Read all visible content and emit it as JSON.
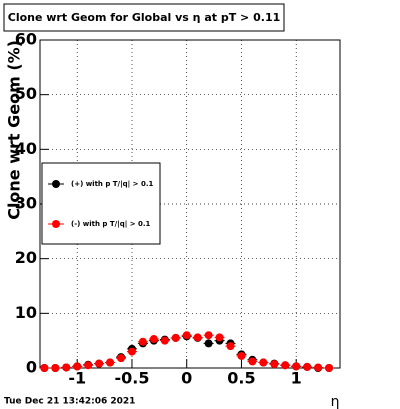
{
  "chart_data": {
    "type": "scatter",
    "title": "Clone wrt Geom for Global vs  η at pT > 0.11",
    "y_label": "Clone wrt Geom (%)",
    "x_label": "η",
    "timestamp": "Tue Dec 21 13:42:06 2021",
    "xlim": [
      -1.34,
      1.4
    ],
    "ylim": [
      0,
      60
    ],
    "xticks": [
      -1,
      -0.5,
      0,
      0.5,
      1
    ],
    "yticks": [
      0,
      10,
      20,
      30,
      40,
      50,
      60
    ],
    "grid": true,
    "legend": "left",
    "series": [
      {
        "name": "(+) with p T/|q| > 0.1",
        "color": "#000000",
        "x": [
          -1.3,
          -1.2,
          -1.1,
          -1.0,
          -0.9,
          -0.8,
          -0.7,
          -0.6,
          -0.5,
          -0.4,
          -0.3,
          -0.2,
          -0.1,
          0,
          0.1,
          0.2,
          0.3,
          0.4,
          0.5,
          0.6,
          0.7,
          0.8,
          0.9,
          1.0,
          1.1,
          1.2,
          1.3
        ],
        "values": [
          0,
          0,
          0.1,
          0.3,
          0.6,
          0.8,
          1.0,
          2.0,
          3.5,
          4.5,
          5.0,
          5.2,
          5.5,
          5.8,
          5.5,
          4.5,
          5.0,
          4.5,
          2.5,
          1.5,
          1.0,
          0.8,
          0.5,
          0.3,
          0.2,
          0,
          0
        ]
      },
      {
        "name": "(-) with p T/|q| > 0.1",
        "color": "#ff0000",
        "x": [
          -1.3,
          -1.2,
          -1.1,
          -1.0,
          -0.9,
          -0.8,
          -0.7,
          -0.6,
          -0.5,
          -0.4,
          -0.3,
          -0.2,
          -0.1,
          0,
          0.1,
          0.2,
          0.3,
          0.4,
          0.5,
          0.6,
          0.7,
          0.8,
          0.9,
          1.0,
          1.1,
          1.2,
          1.3
        ],
        "values": [
          0,
          0,
          0.1,
          0.3,
          0.5,
          0.8,
          1.0,
          1.8,
          3.0,
          4.8,
          5.3,
          5.0,
          5.5,
          6.0,
          5.6,
          6.0,
          5.6,
          4.0,
          2.2,
          1.2,
          1.0,
          0.7,
          0.5,
          0.3,
          0.2,
          0.1,
          0
        ]
      }
    ]
  }
}
